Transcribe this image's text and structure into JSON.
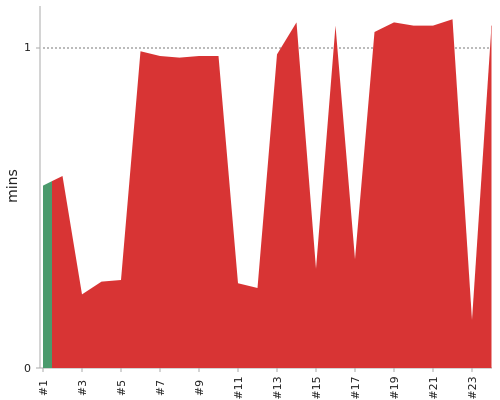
{
  "chart_data": {
    "type": "area",
    "title": "",
    "xlabel": "",
    "ylabel": "mins",
    "x_tick_labels": [
      "#1",
      "#3",
      "#5",
      "#7",
      "#9",
      "#11",
      "#13",
      "#15",
      "#17",
      "#19",
      "#21",
      "#23"
    ],
    "y_tick_labels": [
      "0",
      "1"
    ],
    "ylim": [
      0,
      1.08
    ],
    "reference_line": {
      "value": 1,
      "style": "dotted",
      "color": "#777777"
    },
    "grid": false,
    "legend": "none",
    "colors": {
      "first_build": "#4a9a6c",
      "failed_builds": "#d83434",
      "axis": "#aaaaaa",
      "text": "#222222",
      "reference_line": "#777777"
    },
    "series": [
      {
        "values": [
          0.57,
          0.6,
          0.23,
          0.27,
          0.275,
          0.99,
          0.975,
          0.97,
          0.975,
          0.975,
          0.265,
          0.25,
          0.98,
          1.08,
          0.31,
          1.07,
          0.34,
          1.05,
          1.08,
          1.07,
          1.07,
          1.09,
          0.15,
          1.07
        ]
      }
    ]
  }
}
